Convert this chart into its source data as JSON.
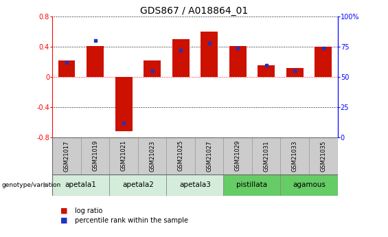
{
  "title": "GDS867 / A018864_01",
  "samples": [
    "GSM21017",
    "GSM21019",
    "GSM21021",
    "GSM21023",
    "GSM21025",
    "GSM21027",
    "GSM21029",
    "GSM21031",
    "GSM21033",
    "GSM21035"
  ],
  "log_ratio": [
    0.22,
    0.41,
    -0.72,
    0.22,
    0.5,
    0.6,
    0.41,
    0.16,
    0.12,
    0.4
  ],
  "percentile": [
    62,
    80,
    12,
    55,
    72,
    78,
    74,
    60,
    55,
    74
  ],
  "groups": [
    {
      "label": "apetala1",
      "cols": [
        0,
        1
      ],
      "color": "#d4edda"
    },
    {
      "label": "apetala2",
      "cols": [
        2,
        3
      ],
      "color": "#d4edda"
    },
    {
      "label": "apetala3",
      "cols": [
        4,
        5
      ],
      "color": "#d4edda"
    },
    {
      "label": "pistillata",
      "cols": [
        6,
        7
      ],
      "color": "#66cc66"
    },
    {
      "label": "agamous",
      "cols": [
        8,
        9
      ],
      "color": "#66cc66"
    }
  ],
  "ylim": [
    -0.8,
    0.8
  ],
  "yticks_left": [
    -0.8,
    -0.4,
    0.0,
    0.4,
    0.8
  ],
  "yticks_right": [
    0,
    25,
    50,
    75,
    100
  ],
  "bar_color": "#cc1100",
  "dot_color": "#2233bb",
  "legend_items": [
    "log ratio",
    "percentile rank within the sample"
  ],
  "background_color": "#ffffff",
  "title_fontsize": 10,
  "tick_fontsize": 7,
  "sample_fontsize": 6,
  "group_fontsize": 7.5,
  "legend_fontsize": 7
}
